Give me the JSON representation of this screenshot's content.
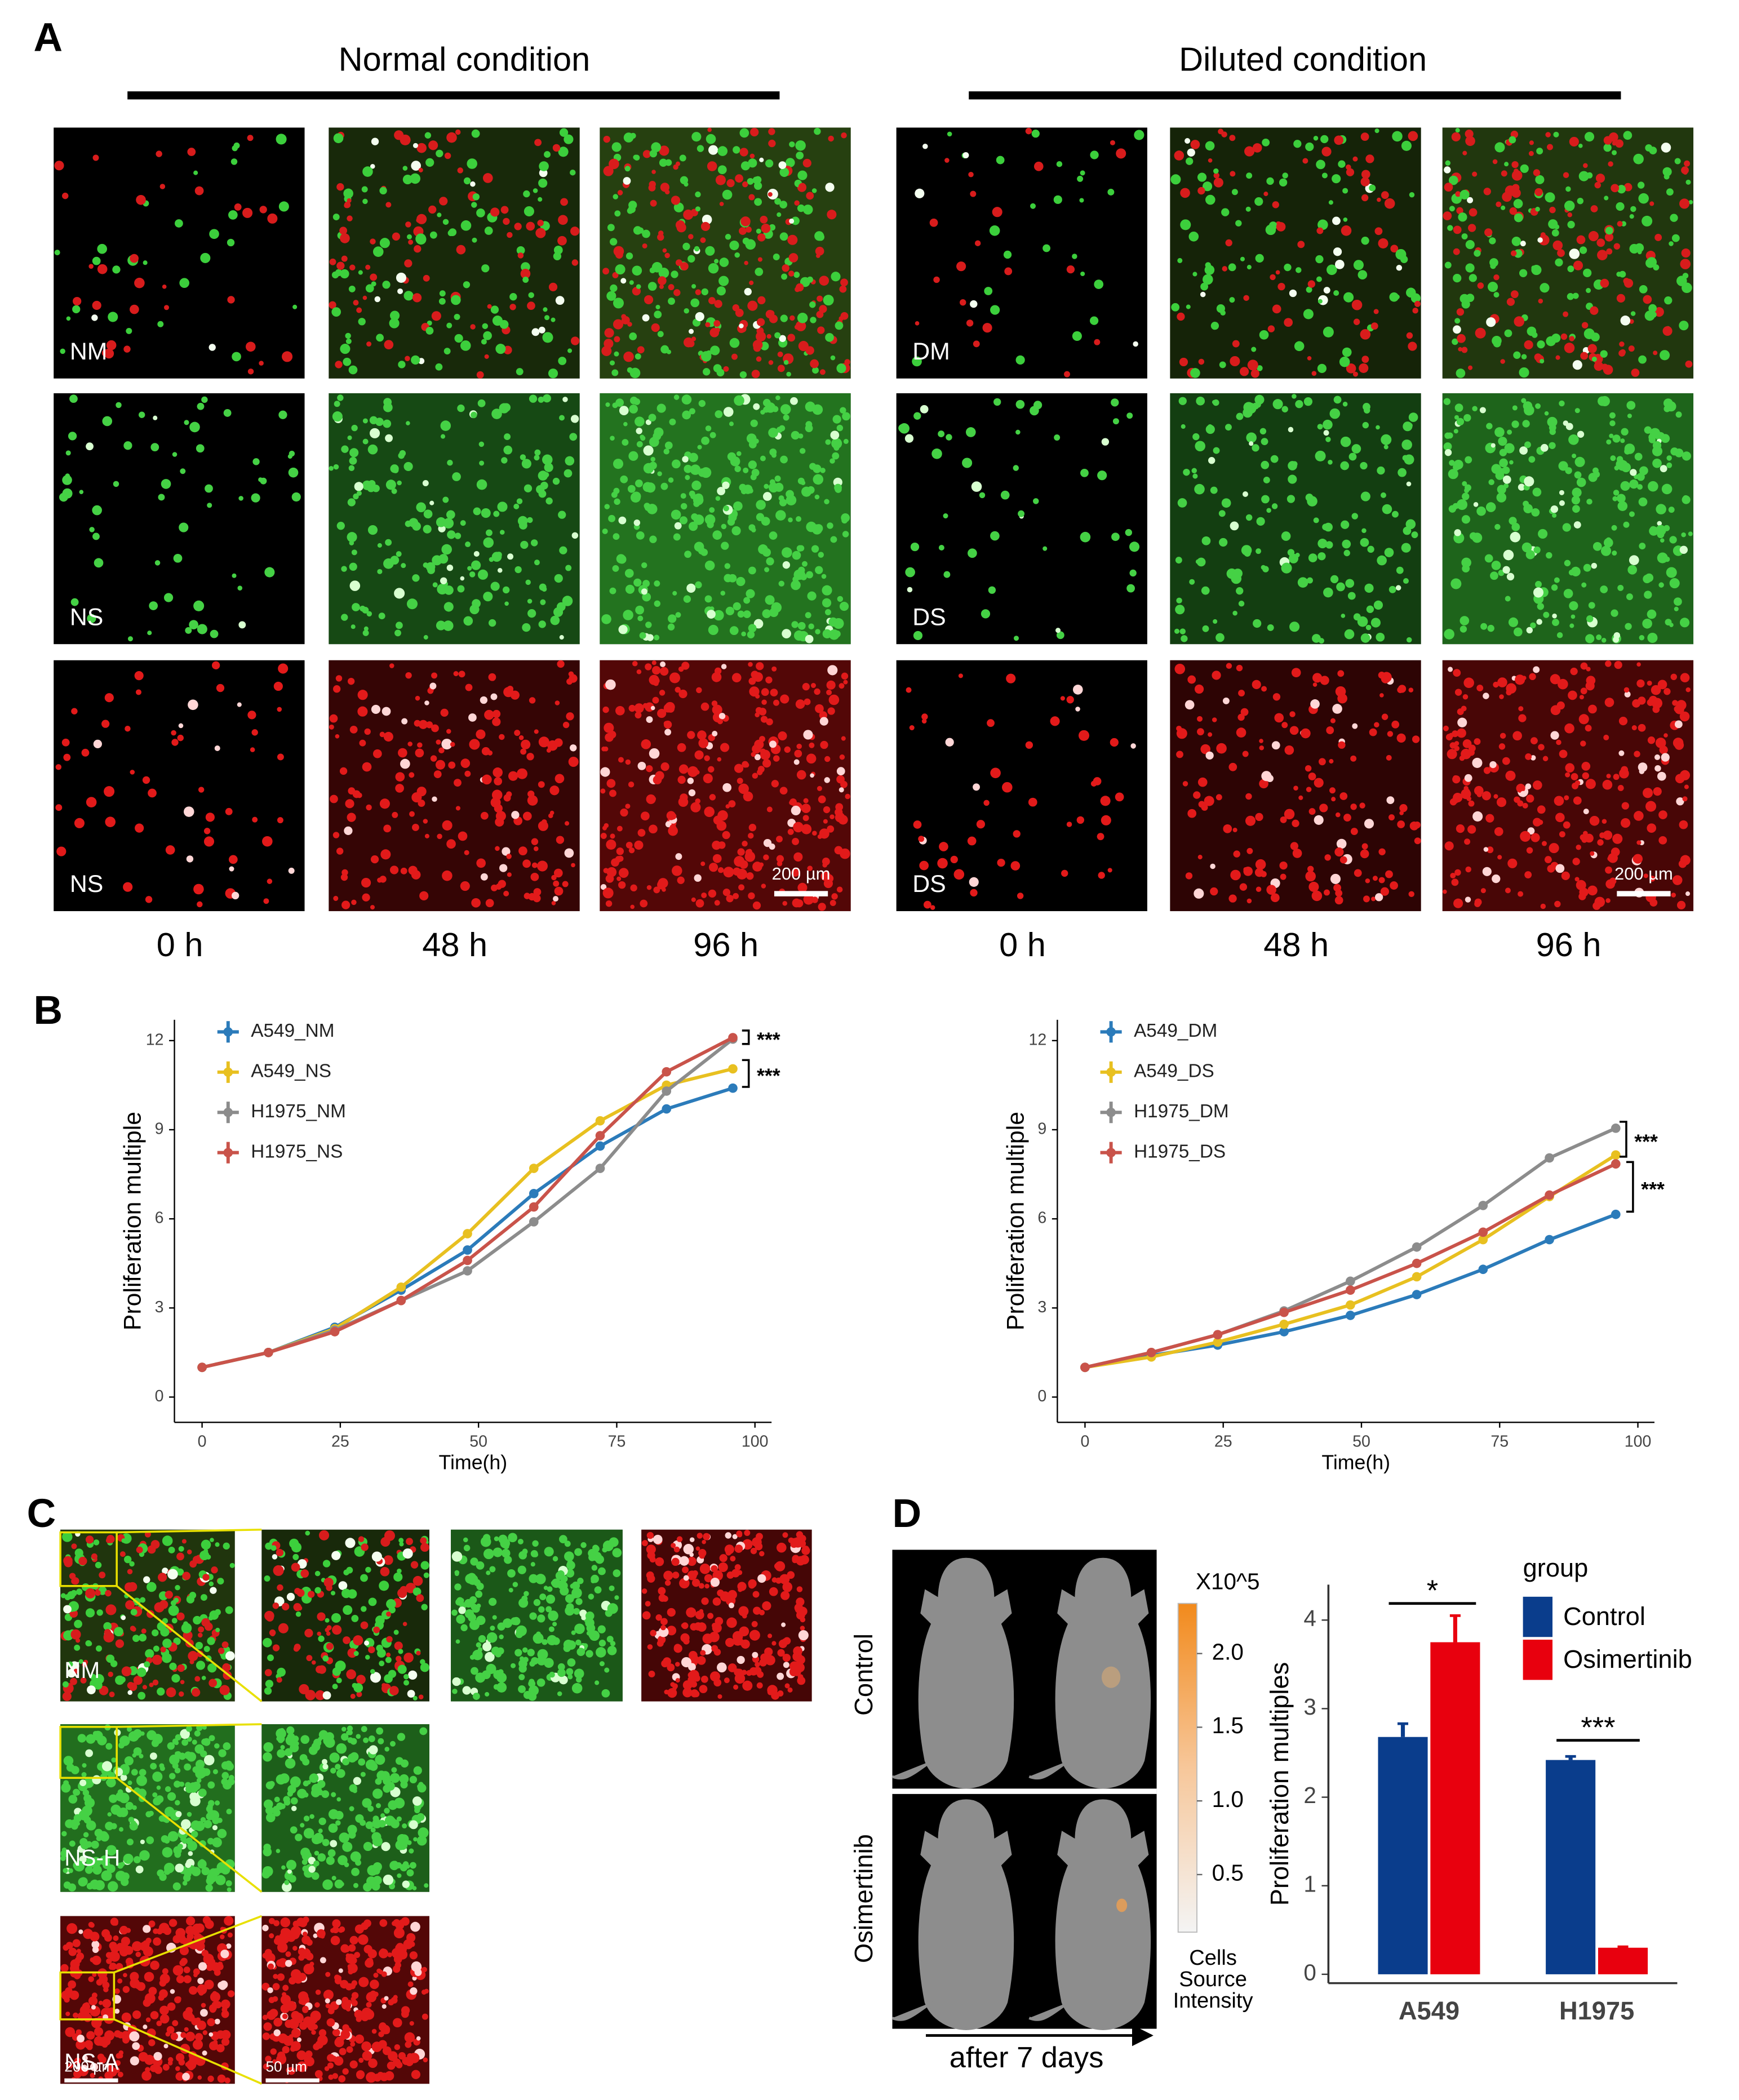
{
  "panels": [
    "A",
    "B",
    "C",
    "D"
  ],
  "panel_a": {
    "conditions": [
      "Normal condition",
      "Diluted condition"
    ],
    "image_labels": [
      "NM",
      "NS",
      "NS",
      "DM",
      "DS",
      "DS"
    ],
    "scale_bar": "200 µm",
    "times": [
      "0 h",
      "48 h",
      "96 h",
      "0 h",
      "48 h",
      "96 h"
    ]
  },
  "panel_c": {
    "image_labels": [
      "NM",
      "NS-H",
      "NS-A"
    ],
    "scale_bars": [
      "200 µm",
      "50 µm"
    ]
  },
  "panel_d": {
    "groups": [
      "Control",
      "Osimertinib"
    ],
    "caption": "after 7 days",
    "colorbar": {
      "title": "X10^5",
      "clim": [
        0,
        2.34
      ],
      "ticks": [
        {
          "value": 0.5,
          "label": "0.5"
        },
        {
          "value": 1,
          "label": "1.0"
        },
        {
          "value": 1.5,
          "label": "1.5"
        },
        {
          "value": 2,
          "label": "2.0"
        }
      ],
      "label": [
        "Cells",
        "Source",
        "Intensity"
      ]
    }
  },
  "chart_data": [
    {
      "type": "line",
      "xlabel": "Time(h)",
      "ylabel": "Proliferation multiple",
      "x": [
        0,
        12,
        24,
        36,
        48,
        60,
        72,
        84,
        96
      ],
      "xlim": [
        -5,
        103
      ],
      "xticks": [
        0,
        25,
        50,
        75,
        100
      ],
      "ylim": [
        -0.85,
        12.7
      ],
      "yticks": [
        0,
        3,
        6,
        9,
        12
      ],
      "legend": "upper left",
      "annotations": [
        "***",
        "***"
      ],
      "series": [
        {
          "name": "A549_NM",
          "color": "#2b7bba",
          "values": [
            1,
            1.5,
            2.35,
            3.6,
            4.95,
            6.85,
            8.45,
            9.7,
            10.4
          ]
        },
        {
          "name": "A549_NS",
          "color": "#e8c020",
          "values": [
            1,
            1.5,
            2.3,
            3.7,
            5.5,
            7.7,
            9.3,
            10.5,
            11.05
          ]
        },
        {
          "name": "H1975_NM",
          "color": "#8c8c8c",
          "values": [
            1,
            1.5,
            2.25,
            3.25,
            4.25,
            5.9,
            7.7,
            10.3,
            12.05
          ]
        },
        {
          "name": "H1975_NS",
          "color": "#c9534a",
          "values": [
            1,
            1.5,
            2.2,
            3.25,
            4.6,
            6.4,
            8.8,
            10.95,
            12.1
          ]
        }
      ]
    },
    {
      "type": "line",
      "xlabel": "Time(h)",
      "ylabel": "Proliferation multiple",
      "x": [
        0,
        12,
        24,
        36,
        48,
        60,
        72,
        84,
        96
      ],
      "xlim": [
        -5,
        103
      ],
      "xticks": [
        0,
        25,
        50,
        75,
        100
      ],
      "ylim": [
        -0.85,
        12.7
      ],
      "yticks": [
        0,
        3,
        6,
        9,
        12
      ],
      "legend": "upper left",
      "annotations": [
        "***",
        "***"
      ],
      "series": [
        {
          "name": "A549_DM",
          "color": "#2b7bba",
          "values": [
            1,
            1.4,
            1.75,
            2.2,
            2.75,
            3.45,
            4.3,
            5.3,
            6.15
          ]
        },
        {
          "name": "A549_DS",
          "color": "#e8c020",
          "values": [
            1,
            1.35,
            1.85,
            2.45,
            3.1,
            4.05,
            5.3,
            6.75,
            8.15
          ]
        },
        {
          "name": "H1975_DM",
          "color": "#8c8c8c",
          "values": [
            1,
            1.5,
            2.1,
            2.9,
            3.9,
            5.05,
            6.45,
            8.05,
            9.05
          ]
        },
        {
          "name": "H1975_DS",
          "color": "#c9534a",
          "values": [
            1,
            1.5,
            2.1,
            2.85,
            3.6,
            4.5,
            5.55,
            6.8,
            7.85
          ]
        }
      ]
    },
    {
      "type": "bar",
      "ylabel": "Proliferation multiples",
      "legend_title": "group",
      "categories": [
        "A549",
        "H1975"
      ],
      "ylim": [
        -0.1,
        4.4
      ],
      "yticks": [
        0,
        1,
        2,
        3,
        4
      ],
      "annotations": [
        "*",
        "***"
      ],
      "series": [
        {
          "name": "Control",
          "color": "#0a3d8c",
          "values": [
            2.68,
            2.42
          ],
          "errors": [
            0.15,
            0.04
          ]
        },
        {
          "name": "Osimertinib",
          "color": "#e8000e",
          "values": [
            3.75,
            0.3
          ],
          "errors": [
            0.3,
            0.01
          ]
        }
      ]
    }
  ]
}
